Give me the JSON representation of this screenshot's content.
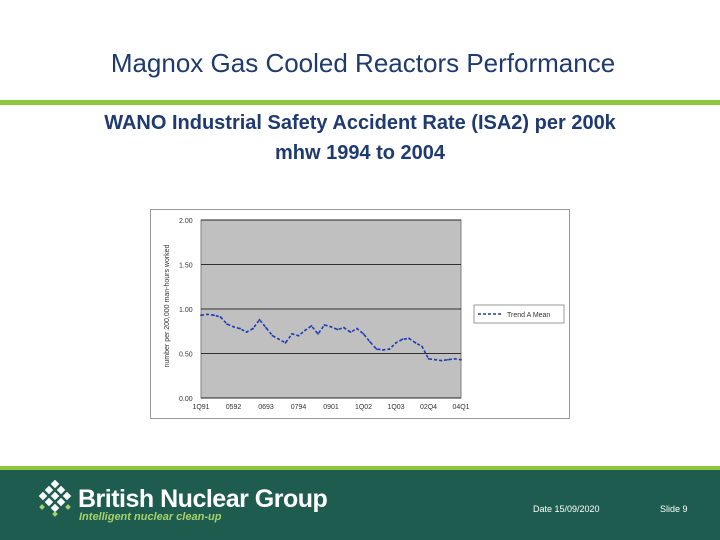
{
  "slide": {
    "title": "Magnox Gas Cooled Reactors Performance",
    "heading_line1": "WANO Industrial Safety Accident Rate (ISA2) per 200k",
    "heading_line2": "mhw 1994 to 2004"
  },
  "footer": {
    "company": "British Nuclear Group",
    "tagline": "Intelligent nuclear clean-up",
    "date": "Date 15/09/2020",
    "slide_number": "Slide 9"
  },
  "colors": {
    "title": "#1f3a6e",
    "accent_green": "#8dc63f",
    "footer_bg": "#1f5c50",
    "plot_bg": "#c0c0c0",
    "series_line": "#1f3bb3"
  },
  "chart_data": {
    "type": "line",
    "title": "",
    "ylabel": "number per 200,000 man-hours worked",
    "xlabel": "",
    "ylim": [
      0,
      2
    ],
    "yticks": [
      0,
      0.5,
      1,
      1.5,
      2
    ],
    "ytick_labels": [
      "0.00",
      "0.50",
      "1.00",
      "1.50",
      "2.00"
    ],
    "xtick_labels": [
      "1Q91",
      "0592",
      "0693",
      "0794",
      "0901",
      "1Q02",
      "1Q03",
      "02Q4",
      "04Q1"
    ],
    "grid": "horizontal",
    "legend_position": "right",
    "series": [
      {
        "name": "Trend A Mean",
        "style": "dashed",
        "x": [
          0,
          1,
          2,
          3,
          4,
          5,
          6,
          7,
          8,
          9,
          10,
          11,
          12,
          13,
          14,
          15,
          16,
          17,
          18,
          19,
          20,
          21,
          22,
          23,
          24,
          25,
          26,
          27,
          28,
          29,
          30,
          31,
          32,
          33,
          34,
          35,
          36,
          37,
          38,
          39,
          40
        ],
        "values": [
          0.93,
          0.94,
          0.93,
          0.91,
          0.83,
          0.8,
          0.78,
          0.74,
          0.78,
          0.88,
          0.79,
          0.7,
          0.66,
          0.62,
          0.72,
          0.7,
          0.76,
          0.81,
          0.72,
          0.82,
          0.8,
          0.77,
          0.79,
          0.74,
          0.78,
          0.72,
          0.63,
          0.55,
          0.54,
          0.55,
          0.62,
          0.66,
          0.67,
          0.62,
          0.58,
          0.44,
          0.43,
          0.42,
          0.43,
          0.44,
          0.43
        ]
      }
    ]
  }
}
